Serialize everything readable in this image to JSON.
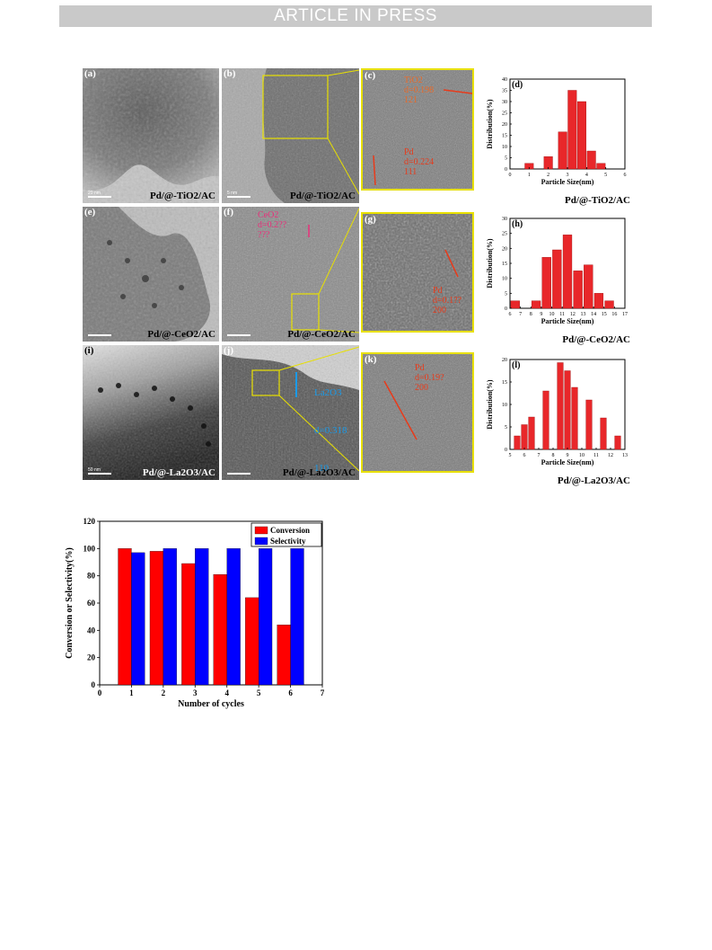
{
  "banner": "ARTICLE IN PRESS",
  "tem_panels": [
    {
      "label": "(a)",
      "caption": "Pd/@-TiO2/AC",
      "scale": "20 nm"
    },
    {
      "label": "(b)",
      "caption": "Pd/@-TiO2/AC",
      "scale": "5 nm"
    },
    {
      "label": "(c)",
      "annot1": "TiO2\nd=0.198\n121",
      "annot2": "Pd\nd=0.224\n111"
    },
    {
      "label": "(e)",
      "caption": "Pd/@-CeO2/AC",
      "scale": ""
    },
    {
      "label": "(f)",
      "caption": "Pd/@-CeO2/AC",
      "annot1": "CeO2\nd=0.2??\n???"
    },
    {
      "label": "(g)",
      "annot1": "Pd\nd=0.1??\n200"
    },
    {
      "label": "(i)",
      "caption": "Pd/@-La2O3/AC",
      "scale": "50 nm"
    },
    {
      "label": "(j)",
      "caption": "Pd/@-La2O3/AC",
      "annot1_l1": "La2O3",
      "annot1_l2": "d=0.318",
      "annot1_l3": "110"
    },
    {
      "label": "(k)",
      "annot1": "Pd\nd=0.19?\n200"
    }
  ],
  "chart_data": [
    {
      "type": "bar",
      "label": "(d)",
      "caption": "Pd/@-TiO2/AC",
      "xlabel": "Particle Size(nm)",
      "ylabel": "Distribution(%)",
      "xlim": [
        0,
        6
      ],
      "ylim": [
        0,
        40
      ],
      "xticks": [
        "0",
        "1",
        "2",
        "3",
        "4",
        "5",
        "6"
      ],
      "yticks": [
        "0",
        "5",
        "10",
        "15",
        "20",
        "25",
        "30",
        "35",
        "40"
      ],
      "x": [
        1,
        2,
        2.75,
        3.25,
        3.75,
        4.25,
        4.75
      ],
      "values": [
        2.5,
        5.5,
        16.5,
        35,
        30,
        8,
        2.5
      ],
      "color": "#e8272a"
    },
    {
      "type": "bar",
      "label": "(h)",
      "caption": "Pd/@-CeO2/AC",
      "xlabel": "Particle Size(nm)",
      "ylabel": "Distribution(%)",
      "xlim": [
        6,
        17
      ],
      "ylim": [
        0,
        30
      ],
      "xticks": [
        "6",
        "7",
        "8",
        "9",
        "10",
        "11",
        "12",
        "13",
        "14",
        "15",
        "16",
        "17"
      ],
      "yticks": [
        "0",
        "5",
        "10",
        "15",
        "20",
        "25",
        "30"
      ],
      "x": [
        6.5,
        8.5,
        9.5,
        10.5,
        11.5,
        12.5,
        13.5,
        14.5,
        15.5
      ],
      "values": [
        2.5,
        2.5,
        17,
        19.5,
        24.5,
        12.5,
        14.5,
        5,
        2.5
      ],
      "color": "#e8272a"
    },
    {
      "type": "bar",
      "label": "(l)",
      "caption": "Pd/@-La2O3/AC",
      "xlabel": "Particle Size(nm)",
      "ylabel": "Distribution(%)",
      "xlim": [
        5,
        13
      ],
      "ylim": [
        0,
        20
      ],
      "xticks": [
        "5",
        "6",
        "7",
        "8",
        "9",
        "10",
        "11",
        "12",
        "13"
      ],
      "yticks": [
        "0",
        "5",
        "10",
        "15",
        "20"
      ],
      "x": [
        5.5,
        6,
        6.5,
        7.5,
        8.5,
        9,
        9.5,
        10.5,
        11.5,
        12.5
      ],
      "values": [
        3,
        5.5,
        7.2,
        13,
        19.3,
        17.5,
        13.8,
        11,
        7,
        3
      ],
      "color": "#e8272a"
    },
    {
      "type": "bar",
      "xlabel": "Number of cycles",
      "ylabel": "Conversion or Selectivity(%)",
      "xlim": [
        0,
        7
      ],
      "ylim": [
        0,
        120
      ],
      "xticks": [
        "0",
        "1",
        "2",
        "3",
        "4",
        "5",
        "6",
        "7"
      ],
      "yticks": [
        "0",
        "20",
        "40",
        "60",
        "80",
        "100",
        "120"
      ],
      "categories": [
        1,
        2,
        3,
        4,
        5,
        6
      ],
      "series": [
        {
          "name": "Conversion",
          "values": [
            100,
            98,
            89,
            81,
            64,
            44
          ],
          "color": "#ff0000"
        },
        {
          "name": "Selectivity",
          "values": [
            97,
            100,
            100,
            100,
            100,
            100
          ],
          "color": "#0000ff"
        }
      ],
      "legend": "top-right"
    }
  ]
}
